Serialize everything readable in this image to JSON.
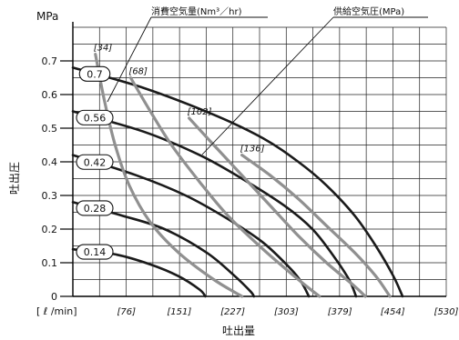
{
  "chart_data": {
    "type": "line",
    "ylabel": "吐出圧",
    "xlabel": "吐出量",
    "y_unit": "MPa",
    "x_unit": "[ ℓ /min]",
    "xlim": [
      0,
      530
    ],
    "ylim": [
      0,
      0.8
    ],
    "x_ticks": [
      "[76]",
      "[151]",
      "[227]",
      "[303]",
      "[379]",
      "[454]",
      "[530]"
    ],
    "x_tick_values": [
      76,
      151,
      227,
      303,
      379,
      454,
      530
    ],
    "y_ticks": [
      "0",
      "0.1",
      "0.2",
      "0.3",
      "0.4",
      "0.5",
      "0.6",
      "0.7"
    ],
    "y_tick_values": [
      0,
      0.1,
      0.2,
      0.3,
      0.4,
      0.5,
      0.6,
      0.7
    ],
    "grid": true,
    "series_colors": {
      "pressure": "#1a1a1a",
      "air": "#909090"
    },
    "pressure_series": [
      {
        "label": "0.7",
        "points": [
          [
            0,
            0.68
          ],
          [
            100,
            0.62
          ],
          [
            200,
            0.54
          ],
          [
            270,
            0.47
          ],
          [
            320,
            0.4
          ],
          [
            360,
            0.33
          ],
          [
            400,
            0.24
          ],
          [
            430,
            0.15
          ],
          [
            455,
            0.06
          ],
          [
            468,
            0
          ]
        ]
      },
      {
        "label": "0.56",
        "points": [
          [
            0,
            0.55
          ],
          [
            100,
            0.49
          ],
          [
            180,
            0.42
          ],
          [
            240,
            0.35
          ],
          [
            300,
            0.27
          ],
          [
            340,
            0.2
          ],
          [
            370,
            0.12
          ],
          [
            392,
            0.05
          ],
          [
            402,
            0
          ]
        ]
      },
      {
        "label": "0.42",
        "points": [
          [
            0,
            0.42
          ],
          [
            90,
            0.36
          ],
          [
            160,
            0.3
          ],
          [
            220,
            0.23
          ],
          [
            270,
            0.16
          ],
          [
            310,
            0.08
          ],
          [
            325,
            0.04
          ],
          [
            335,
            0
          ]
        ]
      },
      {
        "label": "0.28",
        "points": [
          [
            0,
            0.28
          ],
          [
            70,
            0.24
          ],
          [
            130,
            0.2
          ],
          [
            190,
            0.13
          ],
          [
            230,
            0.06
          ],
          [
            252,
            0.015
          ],
          [
            257,
            0
          ]
        ]
      },
      {
        "label": "0.14",
        "points": [
          [
            0,
            0.14
          ],
          [
            60,
            0.125
          ],
          [
            110,
            0.095
          ],
          [
            150,
            0.06
          ],
          [
            180,
            0.02
          ],
          [
            188,
            0
          ]
        ]
      }
    ],
    "air_series": [
      {
        "label": "[34]",
        "points": [
          [
            32,
            0.72
          ],
          [
            45,
            0.58
          ],
          [
            60,
            0.45
          ],
          [
            80,
            0.33
          ],
          [
            110,
            0.22
          ],
          [
            150,
            0.13
          ],
          [
            200,
            0.05
          ],
          [
            240,
            0
          ]
        ]
      },
      {
        "label": "[68]",
        "points": [
          [
            82,
            0.65
          ],
          [
            110,
            0.55
          ],
          [
            140,
            0.45
          ],
          [
            180,
            0.34
          ],
          [
            220,
            0.24
          ],
          [
            270,
            0.14
          ],
          [
            320,
            0.05
          ],
          [
            350,
            0
          ]
        ]
      },
      {
        "label": "[102]",
        "points": [
          [
            165,
            0.53
          ],
          [
            200,
            0.45
          ],
          [
            240,
            0.36
          ],
          [
            280,
            0.27
          ],
          [
            320,
            0.18
          ],
          [
            360,
            0.1
          ],
          [
            400,
            0.03
          ],
          [
            415,
            0
          ]
        ]
      },
      {
        "label": "[136]",
        "points": [
          [
            240,
            0.42
          ],
          [
            280,
            0.36
          ],
          [
            320,
            0.29
          ],
          [
            360,
            0.21
          ],
          [
            400,
            0.13
          ],
          [
            430,
            0.06
          ],
          [
            450,
            0
          ]
        ]
      }
    ],
    "callouts": {
      "air": "消費空気量(Nm³／hr)",
      "pressure": "供給空気圧(MPa)"
    }
  }
}
